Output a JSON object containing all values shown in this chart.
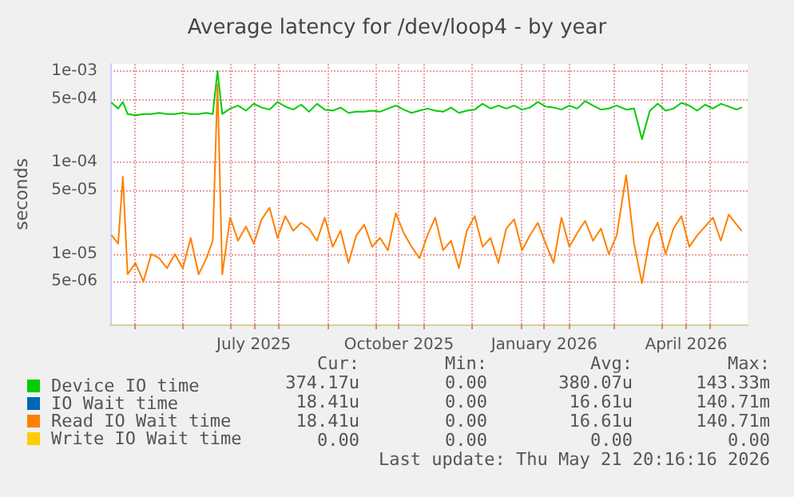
{
  "chart_data": {
    "type": "line",
    "title": "Average latency for /dev/loop4 - by year",
    "ylabel": "seconds",
    "x": [
      "2025-04-17",
      "2025-04-21",
      "2025-04-24",
      "2025-04-27",
      "2025-05-02",
      "2025-05-07",
      "2025-05-12",
      "2025-05-17",
      "2025-05-22",
      "2025-05-27",
      "2025-06-01",
      "2025-06-06",
      "2025-06-11",
      "2025-06-16",
      "2025-06-20",
      "2025-06-23",
      "2025-06-26",
      "2025-07-01",
      "2025-07-06",
      "2025-07-11",
      "2025-07-16",
      "2025-07-21",
      "2025-07-26",
      "2025-07-31",
      "2025-08-05",
      "2025-08-10",
      "2025-08-15",
      "2025-08-20",
      "2025-08-25",
      "2025-08-30",
      "2025-09-04",
      "2025-09-09",
      "2025-09-14",
      "2025-09-19",
      "2025-09-24",
      "2025-09-29",
      "2025-10-04",
      "2025-10-09",
      "2025-10-14",
      "2025-10-19",
      "2025-10-24",
      "2025-10-29",
      "2025-11-03",
      "2025-11-08",
      "2025-11-13",
      "2025-11-18",
      "2025-11-23",
      "2025-11-28",
      "2025-12-03",
      "2025-12-08",
      "2025-12-13",
      "2025-12-18",
      "2025-12-23",
      "2025-12-28",
      "2026-01-02",
      "2026-01-07",
      "2026-01-12",
      "2026-01-17",
      "2026-01-22",
      "2026-01-27",
      "2026-02-01",
      "2026-02-06",
      "2026-02-11",
      "2026-02-16",
      "2026-02-21",
      "2026-02-26",
      "2026-03-03",
      "2026-03-09",
      "2026-03-14",
      "2026-03-19",
      "2026-03-24",
      "2026-03-29",
      "2026-04-03",
      "2026-04-08",
      "2026-04-13",
      "2026-04-18",
      "2026-04-23",
      "2026-04-28",
      "2026-05-03",
      "2026-05-08",
      "2026-05-13",
      "2026-05-18",
      "2026-05-21"
    ],
    "series": [
      {
        "name": "Device IO time",
        "color": "#00cc00",
        "values": [
          0.00045,
          0.00039,
          0.00046,
          0.00034,
          0.00033,
          0.00034,
          0.00034,
          0.00035,
          0.00034,
          0.00034,
          0.00035,
          0.00034,
          0.00034,
          0.00035,
          0.00034,
          0.001,
          0.00034,
          0.00039,
          0.00042,
          0.00037,
          0.00044,
          0.0004,
          0.00038,
          0.00046,
          0.00041,
          0.00038,
          0.00043,
          0.00036,
          0.00044,
          0.00038,
          0.00037,
          0.0004,
          0.00035,
          0.00036,
          0.00036,
          0.00037,
          0.00036,
          0.00039,
          0.00042,
          0.00038,
          0.00035,
          0.00037,
          0.00039,
          0.00037,
          0.00036,
          0.0004,
          0.00035,
          0.00037,
          0.00038,
          0.00044,
          0.00039,
          0.00042,
          0.00039,
          0.00042,
          0.00038,
          0.0004,
          0.00046,
          0.00041,
          0.0004,
          0.00038,
          0.00042,
          0.00039,
          0.00047,
          0.00042,
          0.00038,
          0.00039,
          0.00042,
          0.00038,
          0.00039,
          0.00018,
          0.00037,
          0.00044,
          0.00037,
          0.00039,
          0.00045,
          0.00042,
          0.00037,
          0.00043,
          0.00039,
          0.00044,
          0.00041,
          0.00038,
          0.0004
        ]
      },
      {
        "name": "IO Wait time",
        "color": "#0066b3",
        "values": [
          null,
          null,
          null,
          null,
          null,
          null,
          null,
          null,
          null,
          null,
          null,
          null,
          null,
          null,
          null,
          null,
          null,
          null,
          null,
          null,
          null,
          null,
          null,
          null,
          null,
          null,
          null,
          null,
          null,
          null,
          null,
          null,
          null,
          null,
          null,
          null,
          null,
          null,
          null,
          null,
          null,
          null,
          null,
          null,
          null,
          null,
          null,
          null,
          null,
          null,
          null,
          null,
          null,
          null,
          null,
          null,
          null,
          null,
          null,
          null,
          null,
          null,
          null,
          null,
          null,
          null,
          null,
          null,
          null,
          null,
          null,
          null,
          null,
          null,
          null,
          null,
          null,
          null,
          null,
          null,
          null,
          null,
          null
        ]
      },
      {
        "name": "Read IO Wait time",
        "color": "#ff8000",
        "values": [
          1.6e-05,
          1.3e-05,
          7e-05,
          6e-06,
          8e-06,
          5e-06,
          1e-05,
          9e-06,
          7e-06,
          1e-05,
          7e-06,
          1.5e-05,
          6e-06,
          9e-06,
          1.4e-05,
          0.00072,
          6e-06,
          2.5e-05,
          1.4e-05,
          2e-05,
          1.3e-05,
          2.4e-05,
          3.2e-05,
          1.5e-05,
          2.6e-05,
          1.8e-05,
          2.2e-05,
          1.9e-05,
          1.4e-05,
          2.5e-05,
          1.2e-05,
          1.8e-05,
          8e-06,
          1.6e-05,
          2.1e-05,
          1.2e-05,
          1.5e-05,
          1.1e-05,
          2.8e-05,
          1.7e-05,
          1.2e-05,
          9e-06,
          1.6e-05,
          2.5e-05,
          1.1e-05,
          1.4e-05,
          7e-06,
          1.8e-05,
          2.6e-05,
          1.2e-05,
          1.5e-05,
          8e-06,
          1.9e-05,
          2.4e-05,
          1.1e-05,
          1.6e-05,
          2.2e-05,
          1.3e-05,
          8e-06,
          2.5e-05,
          1.2e-05,
          1.7e-05,
          2.3e-05,
          1.4e-05,
          1.9e-05,
          1e-05,
          1.6e-05,
          7.3e-05,
          1.3e-05,
          4.8e-06,
          1.5e-05,
          2.2e-05,
          1e-05,
          1.9e-05,
          2.6e-05,
          1.2e-05,
          1.6e-05,
          2e-05,
          2.5e-05,
          1.4e-05,
          2.7e-05,
          2.1e-05,
          1.8e-05
        ]
      },
      {
        "name": "Write IO Wait time",
        "color": "#ffcc00",
        "values": [
          null,
          null,
          null,
          null,
          null,
          null,
          null,
          null,
          null,
          null,
          null,
          null,
          null,
          null,
          null,
          null,
          null,
          null,
          null,
          null,
          null,
          null,
          null,
          null,
          null,
          null,
          null,
          null,
          null,
          null,
          null,
          null,
          null,
          null,
          null,
          null,
          null,
          null,
          null,
          null,
          null,
          null,
          null,
          null,
          null,
          null,
          null,
          null,
          null,
          null,
          null,
          null,
          null,
          null,
          null,
          null,
          null,
          null,
          null,
          null,
          null,
          null,
          null,
          null,
          null,
          null,
          null,
          null,
          null,
          null,
          null,
          null,
          null,
          null,
          null,
          null,
          null,
          null,
          null,
          null,
          null,
          null,
          null
        ]
      }
    ],
    "log": "y",
    "ylim": [
      1.7e-06,
      0.0012
    ],
    "yticks": [
      {
        "value": 5e-06,
        "label": "5e-06"
      },
      {
        "value": 1e-05,
        "label": "1e-05"
      },
      {
        "value": 5e-05,
        "label": "5e-05"
      },
      {
        "value": 0.0001,
        "label": "1e-04"
      },
      {
        "value": 0.0005,
        "label": "5e-04"
      },
      {
        "value": 0.001,
        "label": "1e-03"
      }
    ],
    "xlim": [
      "2025-04-16",
      "2026-05-25"
    ],
    "xticks": [
      {
        "value": "2025-05-01",
        "label": null
      },
      {
        "value": "2025-06-01",
        "label": null
      },
      {
        "value": "2025-07-01",
        "label": null
      },
      {
        "value": "2025-07-16",
        "label": "July 2025"
      },
      {
        "value": "2025-08-01",
        "label": null
      },
      {
        "value": "2025-09-01",
        "label": null
      },
      {
        "value": "2025-10-01",
        "label": null
      },
      {
        "value": "2025-10-16",
        "label": "October 2025"
      },
      {
        "value": "2025-11-01",
        "label": null
      },
      {
        "value": "2025-12-01",
        "label": null
      },
      {
        "value": "2026-01-01",
        "label": null
      },
      {
        "value": "2026-01-16",
        "label": "January 2026"
      },
      {
        "value": "2026-02-01",
        "label": null
      },
      {
        "value": "2026-03-01",
        "label": null
      },
      {
        "value": "2026-04-01",
        "label": null
      },
      {
        "value": "2026-04-16",
        "label": "April 2026"
      },
      {
        "value": "2026-05-01",
        "label": null
      }
    ],
    "grid": true,
    "legend": "bottom left",
    "marker": "none",
    "line_style": "solid",
    "annotations": [
      "Cur:",
      "Min:",
      "Avg:",
      "Max:",
      "374.17u",
      "0.00",
      "380.07u",
      "143.33m",
      "18.41u",
      "0.00",
      "16.61u",
      "140.71m",
      "18.41u",
      "0.00",
      "16.61u",
      "140.71m",
      "0.00",
      "0.00",
      "0.00",
      "0.00",
      "Last update: Thu May 21 20:16:16 2026"
    ]
  }
}
